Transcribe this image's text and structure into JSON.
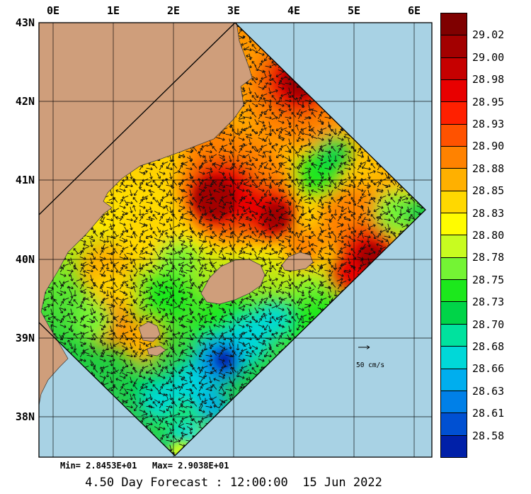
{
  "axes": {
    "lon": [
      "0E",
      "1E",
      "2E",
      "3E",
      "4E",
      "5E",
      "6E"
    ],
    "lat": [
      "43N",
      "42N",
      "41N",
      "40N",
      "39N",
      "38N"
    ]
  },
  "colorbar": {
    "values": [
      "29.02",
      "29.00",
      "28.98",
      "28.95",
      "28.93",
      "28.90",
      "28.88",
      "28.85",
      "28.83",
      "28.80",
      "28.78",
      "28.75",
      "28.73",
      "28.70",
      "28.68",
      "28.66",
      "28.63",
      "28.61",
      "28.58"
    ],
    "colors": [
      "#7F0000",
      "#A30000",
      "#C60000",
      "#E80000",
      "#FF2000",
      "#FF5200",
      "#FF8200",
      "#FFB000",
      "#FFD800",
      "#FFFC00",
      "#C8FC20",
      "#74F434",
      "#1CE81C",
      "#00D448",
      "#00E29E",
      "#00D8D8",
      "#00AEEE",
      "#0080E8",
      "#0050D2",
      "#0020A8"
    ]
  },
  "legend": {
    "vector_scale": "50 cm/s"
  },
  "footer": {
    "stats": "Min= 2.8453E+01   Max= 2.9038E+01",
    "caption": "4.50 Day Forecast : 12:00:00  15 Jun 2022"
  },
  "map_colors": {
    "sea": "#A8D2E4",
    "land": "#CF9E7B"
  },
  "chart_data": {
    "type": "heatmap",
    "title": "4.50 Day Forecast : 12:00:00  15 Jun 2022",
    "description": "Forecast scalar field with surface current vectors on a rotated model domain over the Balearic Sea (western Mediterranean); land shown tan, undata sea light blue",
    "x_axis": {
      "label": "longitude",
      "ticks": [
        "0E",
        "1E",
        "2E",
        "3E",
        "4E",
        "5E",
        "6E"
      ]
    },
    "y_axis": {
      "label": "latitude",
      "ticks": [
        "43N",
        "42N",
        "41N",
        "40N",
        "39N",
        "38N"
      ]
    },
    "colorbar": {
      "tick_values": [
        29.02,
        29.0,
        28.98,
        28.95,
        28.93,
        28.9,
        28.88,
        28.85,
        28.83,
        28.8,
        28.78,
        28.75,
        28.73,
        28.7,
        28.68,
        28.66,
        28.63,
        28.61,
        28.58
      ],
      "colors_top_to_bottom": [
        "#7F0000",
        "#A30000",
        "#C60000",
        "#E80000",
        "#FF2000",
        "#FF5200",
        "#FF8200",
        "#FFB000",
        "#FFD800",
        "#FFFC00",
        "#C8FC20",
        "#74F434",
        "#1CE81C",
        "#00D448",
        "#00E29E",
        "#00D8D8",
        "#00AEEE",
        "#0080E8",
        "#0050D2",
        "#0020A8"
      ]
    },
    "field_min": "2.8453E+01",
    "field_max": "2.9038E+01",
    "vector_scale_label": "50 cm/s",
    "forecast": {
      "lead": "4.50 Day",
      "time": "12:00:00",
      "date": "15 Jun 2022"
    }
  }
}
